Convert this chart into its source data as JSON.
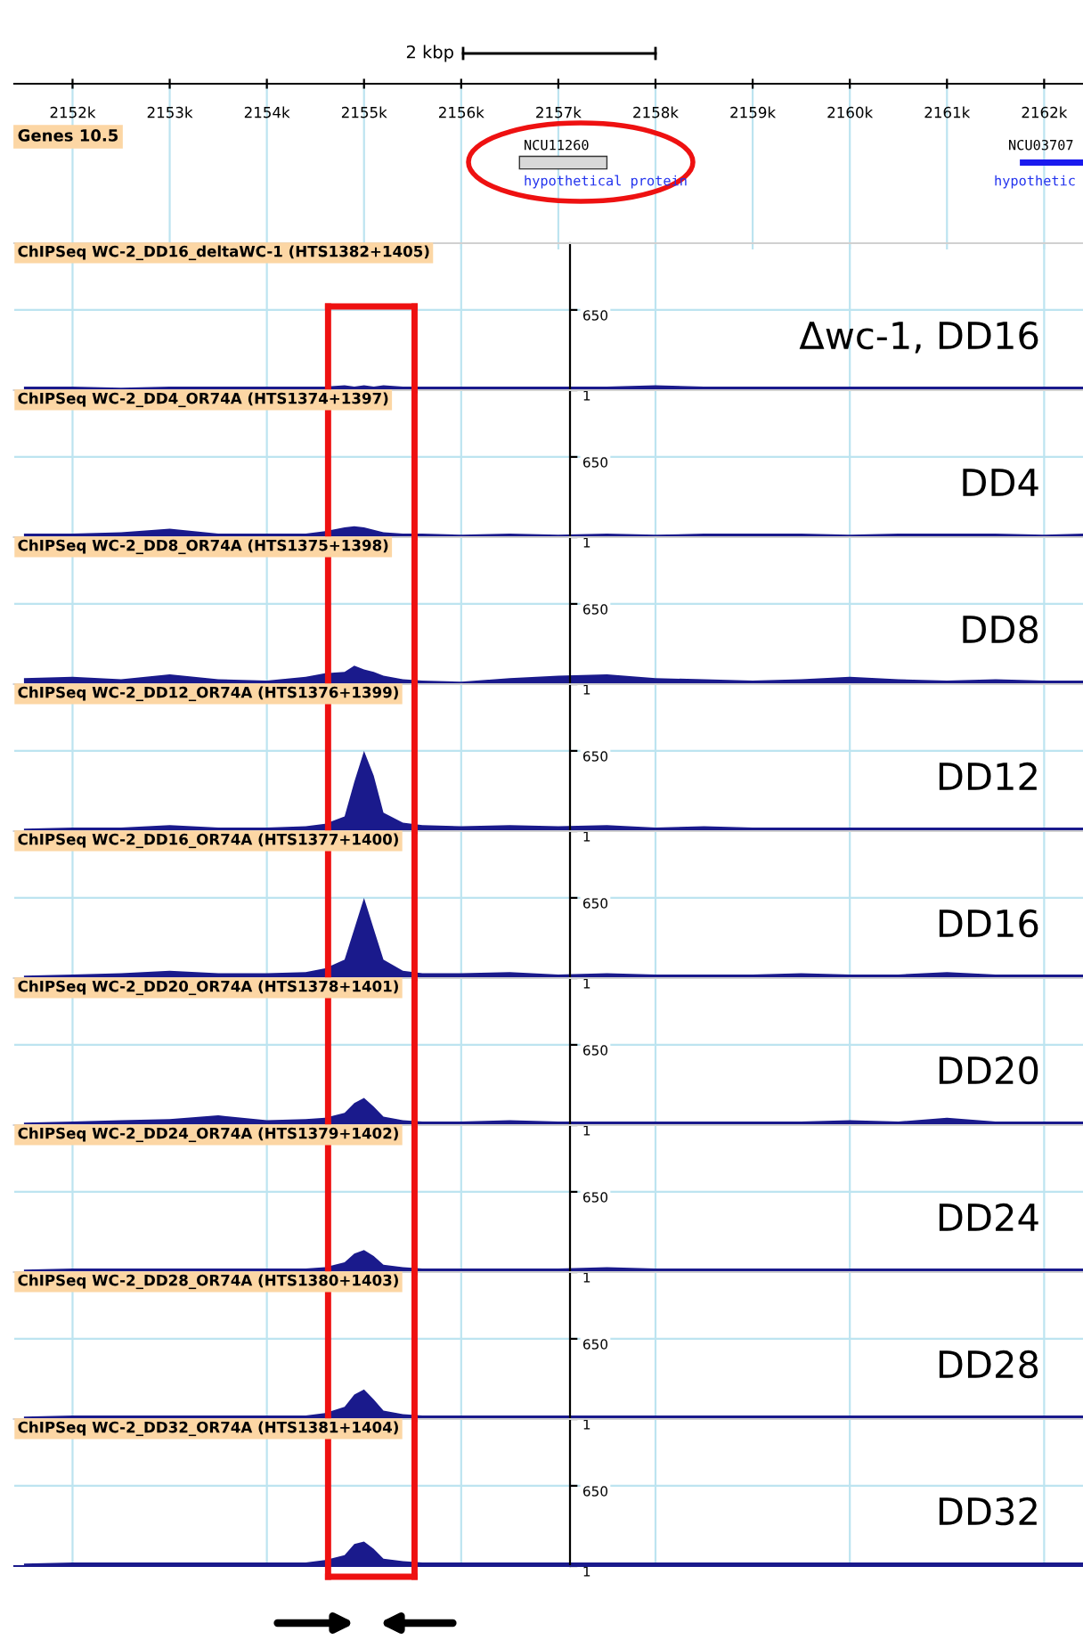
{
  "chart_data": [
    {
      "type": "bar",
      "orientation": "horizontal",
      "title": "Genes 10.5",
      "categories": [
        null
      ],
      "series": [
        {
          "values": [
            0.9
          ],
          "base": [
            2156.6
          ],
          "color": "#d8d8d8"
        },
        {
          "values": [
            0.65
          ],
          "base": [
            2161.75
          ],
          "color": "#1a1aee"
        }
      ],
      "xlim": [
        2151.4,
        2162.4
      ],
      "xticks": [
        {
          "value": 2152,
          "label": "2152k"
        },
        {
          "value": 2153,
          "label": "2153k"
        },
        {
          "value": 2154,
          "label": "2154k"
        },
        {
          "value": 2155,
          "label": "2155k"
        },
        {
          "value": 2156,
          "label": "2156k"
        },
        {
          "value": 2157,
          "label": "2157k"
        },
        {
          "value": 2158,
          "label": "2158k"
        },
        {
          "value": 2159,
          "label": "2159k"
        },
        {
          "value": 2160,
          "label": "2160k"
        },
        {
          "value": 2161,
          "label": "2161k"
        },
        {
          "value": 2162,
          "label": "2162k"
        }
      ],
      "grid": "x",
      "tick_labels": "x",
      "annotations": [
        "2 kbp",
        "NCU11260",
        "hypothetical protein",
        "NCU03707",
        "hypothetic"
      ]
    },
    {
      "type": "area",
      "title": "ChIPSeq WC-2_DD16_deltaWC-1 (HTS1382+1405)",
      "x": [
        2151.5,
        2152.0,
        2152.5,
        2153.0,
        2153.5,
        2154.0,
        2154.4,
        2154.6,
        2154.8,
        2154.9,
        2155.0,
        2155.1,
        2155.2,
        2155.4,
        2155.6,
        2156.0,
        2156.5,
        2157.0,
        2157.5,
        2158.0,
        2158.5,
        2159.0,
        2159.5,
        2160.0,
        2160.5,
        2161.0,
        2161.5,
        2162.0,
        2162.4
      ],
      "values": [
        30,
        30,
        20,
        30,
        30,
        30,
        30,
        30,
        40,
        30,
        40,
        30,
        40,
        30,
        30,
        30,
        30,
        30,
        30,
        40,
        30,
        30,
        30,
        30,
        30,
        30,
        30,
        30,
        30
      ],
      "color": "#1a1a8c",
      "xlim": [
        2151.4,
        2162.4
      ],
      "xticks": [
        {
          "value": 2152,
          "label": null
        },
        {
          "value": 2154,
          "label": null
        },
        {
          "value": 2156,
          "label": null
        },
        {
          "value": 2158,
          "label": null
        },
        {
          "value": 2160,
          "label": null
        },
        {
          "value": 2162,
          "label": null
        }
      ],
      "ylim": [
        1,
        1190
      ],
      "yticks": [
        1,
        650
      ],
      "grid": true,
      "tick_labels": "y",
      "ref_lines": [
        {
          "axis": "x",
          "value": 2154.63,
          "color": "#ee1111"
        },
        {
          "axis": "x",
          "value": 2155.52,
          "color": "#ee1111"
        }
      ],
      "annotations": [
        "Δwc-1, DD16"
      ]
    },
    {
      "type": "area",
      "title": "ChIPSeq WC-2_DD4_OR74A (HTS1374+1397)",
      "x": [
        2151.5,
        2152.0,
        2152.5,
        2153.0,
        2153.5,
        2154.0,
        2154.4,
        2154.6,
        2154.8,
        2154.9,
        2155.0,
        2155.1,
        2155.2,
        2155.4,
        2155.6,
        2156.0,
        2156.5,
        2157.0,
        2157.5,
        2158.0,
        2158.5,
        2159.0,
        2159.5,
        2160.0,
        2160.5,
        2161.0,
        2161.5,
        2162.0,
        2162.4
      ],
      "values": [
        30,
        30,
        40,
        70,
        30,
        30,
        30,
        50,
        80,
        90,
        80,
        60,
        40,
        30,
        30,
        20,
        30,
        20,
        30,
        20,
        30,
        30,
        30,
        20,
        30,
        30,
        30,
        20,
        30
      ],
      "color": "#1a1a8c",
      "xlim": [
        2151.4,
        2162.4
      ],
      "xticks": [
        {
          "value": 2152,
          "label": null
        },
        {
          "value": 2154,
          "label": null
        },
        {
          "value": 2156,
          "label": null
        },
        {
          "value": 2158,
          "label": null
        },
        {
          "value": 2160,
          "label": null
        },
        {
          "value": 2162,
          "label": null
        }
      ],
      "ylim": [
        1,
        1190
      ],
      "yticks": [
        1,
        650
      ],
      "grid": true,
      "tick_labels": "y",
      "ref_lines": [
        {
          "axis": "x",
          "value": 2154.63,
          "color": "#ee1111"
        },
        {
          "axis": "x",
          "value": 2155.52,
          "color": "#ee1111"
        }
      ],
      "annotations": [
        "DD4"
      ]
    },
    {
      "type": "area",
      "title": "ChIPSeq WC-2_DD8_OR74A (HTS1375+1398)",
      "x": [
        2151.5,
        2152.0,
        2152.5,
        2153.0,
        2153.5,
        2154.0,
        2154.4,
        2154.6,
        2154.8,
        2154.9,
        2155.0,
        2155.1,
        2155.2,
        2155.4,
        2155.6,
        2156.0,
        2156.5,
        2157.0,
        2157.5,
        2158.0,
        2158.5,
        2159.0,
        2159.5,
        2160.0,
        2160.5,
        2161.0,
        2161.5,
        2162.0,
        2162.4
      ],
      "values": [
        50,
        60,
        40,
        80,
        40,
        30,
        60,
        90,
        100,
        150,
        120,
        100,
        70,
        40,
        30,
        20,
        50,
        70,
        80,
        50,
        40,
        30,
        40,
        60,
        40,
        30,
        40,
        30,
        30
      ],
      "color": "#1a1a8c",
      "xlim": [
        2151.4,
        2162.4
      ],
      "xticks": [
        {
          "value": 2152,
          "label": null
        },
        {
          "value": 2154,
          "label": null
        },
        {
          "value": 2156,
          "label": null
        },
        {
          "value": 2158,
          "label": null
        },
        {
          "value": 2160,
          "label": null
        },
        {
          "value": 2162,
          "label": null
        }
      ],
      "ylim": [
        1,
        1190
      ],
      "yticks": [
        1,
        650
      ],
      "grid": true,
      "tick_labels": "y",
      "ref_lines": [
        {
          "axis": "x",
          "value": 2154.63,
          "color": "#ee1111"
        },
        {
          "axis": "x",
          "value": 2155.52,
          "color": "#ee1111"
        }
      ],
      "annotations": [
        "DD8"
      ]
    },
    {
      "type": "area",
      "title": "ChIPSeq WC-2_DD12_OR74A (HTS1376+1399)",
      "x": [
        2151.5,
        2152.0,
        2152.5,
        2153.0,
        2153.5,
        2154.0,
        2154.4,
        2154.6,
        2154.8,
        2154.9,
        2155.0,
        2155.1,
        2155.2,
        2155.4,
        2155.6,
        2156.0,
        2156.5,
        2157.0,
        2157.5,
        2158.0,
        2158.5,
        2159.0,
        2159.5,
        2160.0,
        2160.5,
        2161.0,
        2161.5,
        2162.0,
        2162.4
      ],
      "values": [
        20,
        30,
        30,
        50,
        30,
        30,
        40,
        60,
        120,
        400,
        650,
        450,
        150,
        70,
        50,
        40,
        50,
        40,
        50,
        30,
        40,
        30,
        30,
        30,
        30,
        30,
        30,
        30,
        30
      ],
      "color": "#1a1a8c",
      "xlim": [
        2151.4,
        2162.4
      ],
      "xticks": [
        {
          "value": 2152,
          "label": null
        },
        {
          "value": 2154,
          "label": null
        },
        {
          "value": 2156,
          "label": null
        },
        {
          "value": 2158,
          "label": null
        },
        {
          "value": 2160,
          "label": null
        },
        {
          "value": 2162,
          "label": null
        }
      ],
      "ylim": [
        1,
        1190
      ],
      "yticks": [
        1,
        650
      ],
      "grid": true,
      "tick_labels": "y",
      "ref_lines": [
        {
          "axis": "x",
          "value": 2154.63,
          "color": "#ee1111"
        },
        {
          "axis": "x",
          "value": 2155.52,
          "color": "#ee1111"
        }
      ],
      "annotations": [
        "DD12"
      ]
    },
    {
      "type": "area",
      "title": "ChIPSeq WC-2_DD16_OR74A (HTS1377+1400)",
      "x": [
        2151.5,
        2152.0,
        2152.5,
        2153.0,
        2153.5,
        2154.0,
        2154.4,
        2154.6,
        2154.8,
        2154.9,
        2155.0,
        2155.1,
        2155.2,
        2155.4,
        2155.6,
        2156.0,
        2156.5,
        2157.0,
        2157.5,
        2158.0,
        2158.5,
        2159.0,
        2159.5,
        2160.0,
        2160.5,
        2161.0,
        2161.5,
        2162.0,
        2162.4
      ],
      "values": [
        20,
        30,
        40,
        60,
        40,
        40,
        50,
        80,
        150,
        400,
        650,
        400,
        150,
        60,
        40,
        40,
        50,
        30,
        40,
        30,
        30,
        30,
        40,
        30,
        30,
        50,
        30,
        30,
        30
      ],
      "color": "#1a1a8c",
      "xlim": [
        2151.4,
        2162.4
      ],
      "xticks": [
        {
          "value": 2152,
          "label": null
        },
        {
          "value": 2154,
          "label": null
        },
        {
          "value": 2156,
          "label": null
        },
        {
          "value": 2158,
          "label": null
        },
        {
          "value": 2160,
          "label": null
        },
        {
          "value": 2162,
          "label": null
        }
      ],
      "ylim": [
        1,
        1190
      ],
      "yticks": [
        1,
        650
      ],
      "grid": true,
      "tick_labels": "y",
      "ref_lines": [
        {
          "axis": "x",
          "value": 2154.63,
          "color": "#ee1111"
        },
        {
          "axis": "x",
          "value": 2155.52,
          "color": "#ee1111"
        }
      ],
      "annotations": [
        "DD16"
      ]
    },
    {
      "type": "area",
      "title": "ChIPSeq WC-2_DD20_OR74A (HTS1378+1401)",
      "x": [
        2151.5,
        2152.0,
        2152.5,
        2153.0,
        2153.5,
        2154.0,
        2154.4,
        2154.6,
        2154.8,
        2154.9,
        2155.0,
        2155.1,
        2155.2,
        2155.4,
        2155.6,
        2156.0,
        2156.5,
        2157.0,
        2157.5,
        2158.0,
        2158.5,
        2159.0,
        2159.5,
        2160.0,
        2160.5,
        2161.0,
        2161.5,
        2162.0,
        2162.4
      ],
      "values": [
        20,
        30,
        40,
        50,
        80,
        40,
        50,
        60,
        100,
        180,
        220,
        150,
        70,
        40,
        30,
        30,
        40,
        30,
        30,
        30,
        30,
        30,
        30,
        40,
        30,
        60,
        30,
        30,
        30
      ],
      "color": "#1a1a8c",
      "xlim": [
        2151.4,
        2162.4
      ],
      "xticks": [
        {
          "value": 2152,
          "label": null
        },
        {
          "value": 2154,
          "label": null
        },
        {
          "value": 2156,
          "label": null
        },
        {
          "value": 2158,
          "label": null
        },
        {
          "value": 2160,
          "label": null
        },
        {
          "value": 2162,
          "label": null
        }
      ],
      "ylim": [
        1,
        1190
      ],
      "yticks": [
        1,
        650
      ],
      "grid": true,
      "tick_labels": "y",
      "ref_lines": [
        {
          "axis": "x",
          "value": 2154.63,
          "color": "#ee1111"
        },
        {
          "axis": "x",
          "value": 2155.52,
          "color": "#ee1111"
        }
      ],
      "annotations": [
        "DD20"
      ]
    },
    {
      "type": "area",
      "title": "ChIPSeq WC-2_DD24_OR74A (HTS1379+1402)",
      "x": [
        2151.5,
        2152.0,
        2152.5,
        2153.0,
        2153.5,
        2154.0,
        2154.4,
        2154.6,
        2154.8,
        2154.9,
        2155.0,
        2155.1,
        2155.2,
        2155.4,
        2155.6,
        2156.0,
        2156.5,
        2157.0,
        2157.5,
        2158.0,
        2158.5,
        2159.0,
        2159.5,
        2160.0,
        2160.5,
        2161.0,
        2161.5,
        2162.0,
        2162.4
      ],
      "values": [
        20,
        30,
        30,
        30,
        30,
        30,
        30,
        40,
        80,
        150,
        180,
        130,
        60,
        40,
        30,
        30,
        30,
        30,
        40,
        30,
        30,
        30,
        30,
        30,
        30,
        30,
        30,
        30,
        30
      ],
      "color": "#1a1a8c",
      "xlim": [
        2151.4,
        2162.4
      ],
      "xticks": [
        {
          "value": 2152,
          "label": null
        },
        {
          "value": 2154,
          "label": null
        },
        {
          "value": 2156,
          "label": null
        },
        {
          "value": 2158,
          "label": null
        },
        {
          "value": 2160,
          "label": null
        },
        {
          "value": 2162,
          "label": null
        }
      ],
      "ylim": [
        1,
        1190
      ],
      "yticks": [
        1,
        650
      ],
      "grid": true,
      "tick_labels": "y",
      "ref_lines": [
        {
          "axis": "x",
          "value": 2154.63,
          "color": "#ee1111"
        },
        {
          "axis": "x",
          "value": 2155.52,
          "color": "#ee1111"
        }
      ],
      "annotations": [
        "DD24"
      ]
    },
    {
      "type": "area",
      "title": "ChIPSeq WC-2_DD28_OR74A (HTS1380+1403)",
      "x": [
        2151.5,
        2152.0,
        2152.5,
        2153.0,
        2153.5,
        2154.0,
        2154.4,
        2154.6,
        2154.8,
        2154.9,
        2155.0,
        2155.1,
        2155.2,
        2155.4,
        2155.6,
        2156.0,
        2156.5,
        2157.0,
        2157.5,
        2158.0,
        2158.5,
        2159.0,
        2159.5,
        2160.0,
        2160.5,
        2161.0,
        2161.5,
        2162.0,
        2162.4
      ],
      "values": [
        20,
        30,
        30,
        30,
        30,
        30,
        30,
        50,
        100,
        200,
        240,
        160,
        70,
        40,
        30,
        30,
        30,
        30,
        30,
        30,
        30,
        30,
        30,
        30,
        30,
        30,
        30,
        30,
        30
      ],
      "color": "#1a1a8c",
      "xlim": [
        2151.4,
        2162.4
      ],
      "xticks": [
        {
          "value": 2152,
          "label": null
        },
        {
          "value": 2154,
          "label": null
        },
        {
          "value": 2156,
          "label": null
        },
        {
          "value": 2158,
          "label": null
        },
        {
          "value": 2160,
          "label": null
        },
        {
          "value": 2162,
          "label": null
        }
      ],
      "ylim": [
        1,
        1190
      ],
      "yticks": [
        1,
        650
      ],
      "grid": true,
      "tick_labels": "y",
      "ref_lines": [
        {
          "axis": "x",
          "value": 2154.63,
          "color": "#ee1111"
        },
        {
          "axis": "x",
          "value": 2155.52,
          "color": "#ee1111"
        }
      ],
      "annotations": [
        "DD28"
      ]
    },
    {
      "type": "area",
      "title": "ChIPSeq WC-2_DD32_OR74A (HTS1381+1404)",
      "x": [
        2151.5,
        2152.0,
        2152.5,
        2153.0,
        2153.5,
        2154.0,
        2154.4,
        2154.6,
        2154.8,
        2154.9,
        2155.0,
        2155.1,
        2155.2,
        2155.4,
        2155.6,
        2156.0,
        2156.5,
        2157.0,
        2157.5,
        2158.0,
        2158.5,
        2159.0,
        2159.5,
        2160.0,
        2160.5,
        2161.0,
        2161.5,
        2162.0,
        2162.4
      ],
      "values": [
        20,
        30,
        30,
        30,
        30,
        30,
        30,
        50,
        90,
        180,
        200,
        140,
        60,
        40,
        30,
        30,
        30,
        30,
        30,
        30,
        30,
        30,
        30,
        30,
        30,
        30,
        30,
        30,
        30
      ],
      "color": "#1a1a8c",
      "xlim": [
        2151.4,
        2162.4
      ],
      "xticks": [
        {
          "value": 2152,
          "label": null
        },
        {
          "value": 2154,
          "label": null
        },
        {
          "value": 2156,
          "label": null
        },
        {
          "value": 2158,
          "label": null
        },
        {
          "value": 2160,
          "label": null
        },
        {
          "value": 2162,
          "label": null
        }
      ],
      "ylim": [
        1,
        1190
      ],
      "yticks": [
        1,
        650
      ],
      "grid": true,
      "tick_labels": "y",
      "ref_lines": [
        {
          "axis": "x",
          "value": 2154.63,
          "color": "#ee1111"
        },
        {
          "axis": "x",
          "value": 2155.52,
          "color": "#ee1111"
        }
      ],
      "annotations": [
        "DD32"
      ]
    }
  ]
}
